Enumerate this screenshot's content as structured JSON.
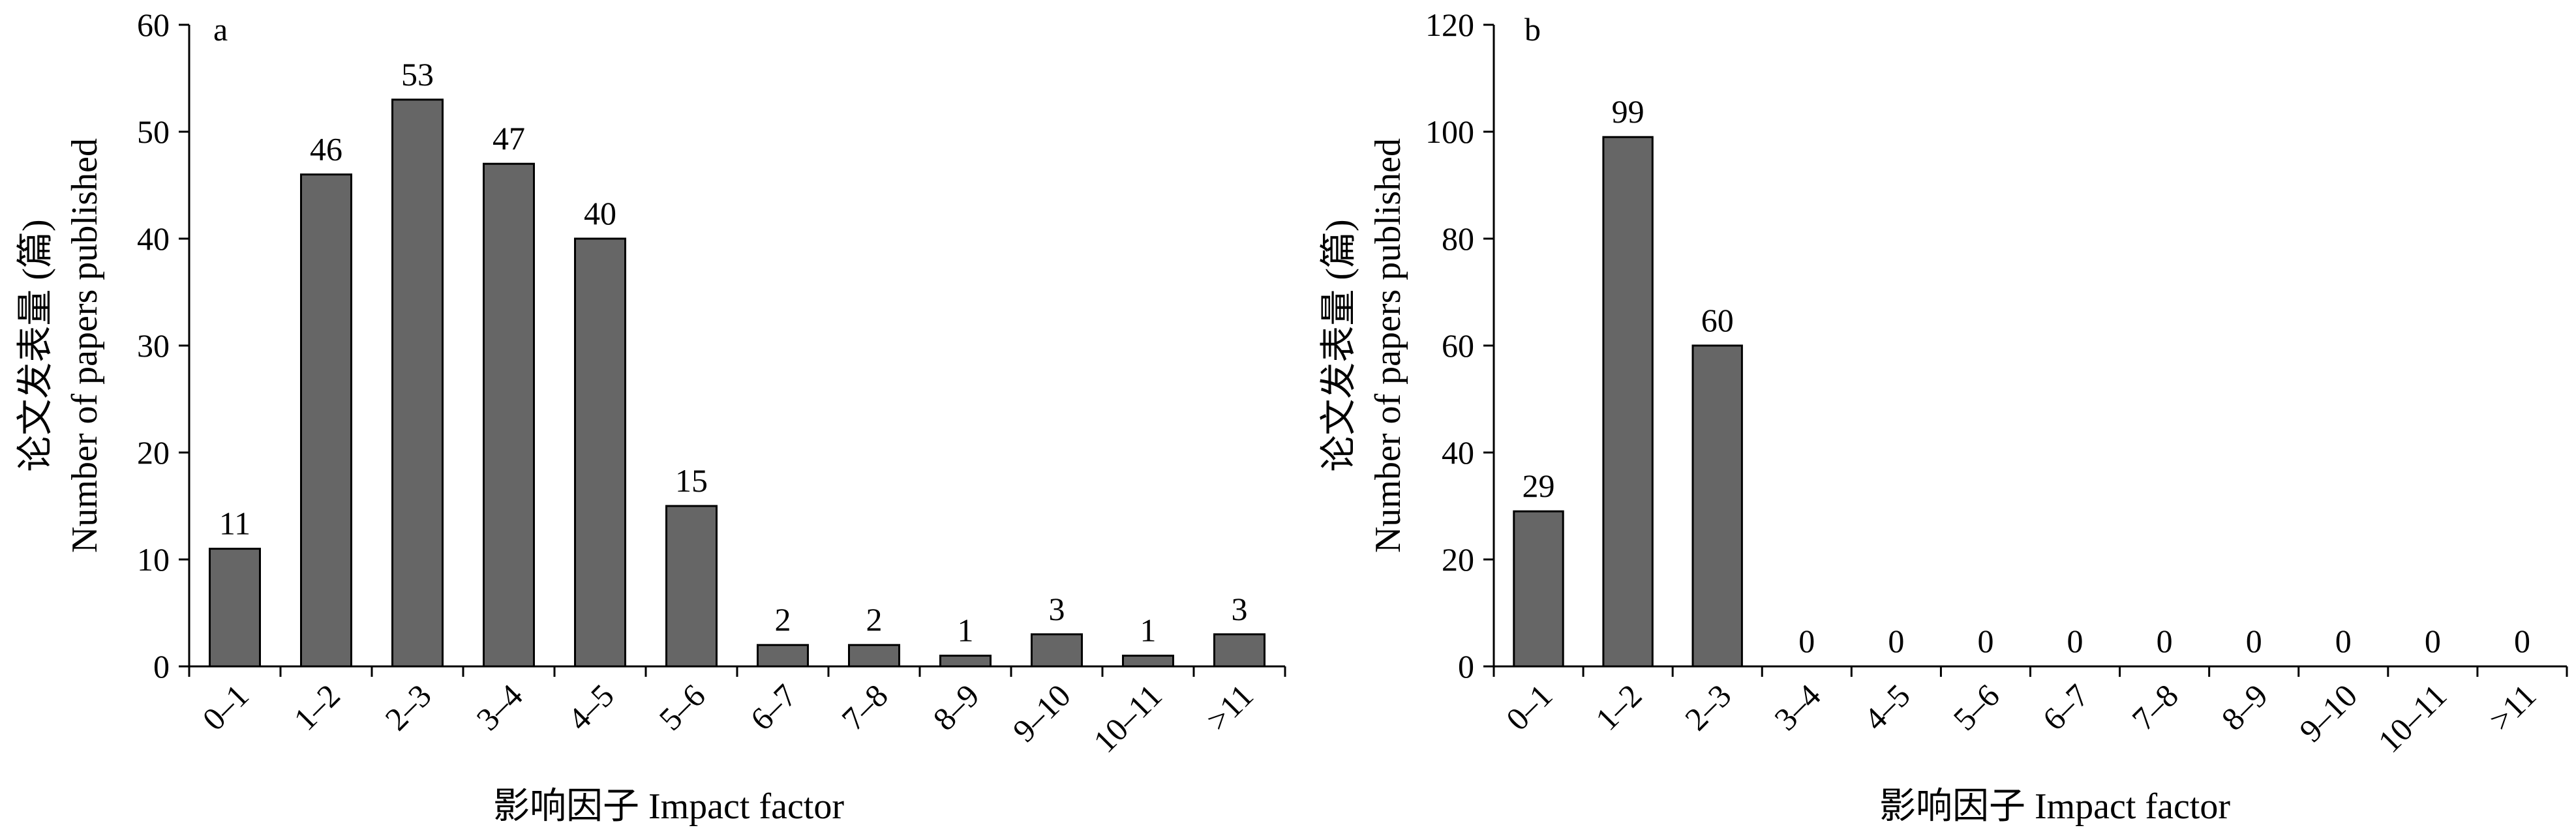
{
  "chart_data": [
    {
      "type": "bar",
      "panel_label": "a",
      "categories": [
        "0–1",
        "1–2",
        "2–3",
        "3–4",
        "4–5",
        "5–6",
        "6–7",
        "7–8",
        "8–9",
        "9–10",
        "10–11",
        ">11"
      ],
      "values": [
        11,
        46,
        53,
        47,
        40,
        15,
        2,
        2,
        1,
        3,
        1,
        3
      ],
      "data_labels": [
        "11",
        "46",
        "53",
        "47",
        "40",
        "15",
        "2",
        "2",
        "1",
        "3",
        "1",
        "3"
      ],
      "xlabel": "影响因子 Impact factor",
      "ylabel_cn": "论文发表量 (篇)",
      "ylabel_en": "Number of papers published",
      "ylim": [
        0,
        60
      ],
      "yticks": [
        "0",
        "10",
        "20",
        "30",
        "40",
        "50",
        "60"
      ],
      "grid": false,
      "bar_color": "#666666"
    },
    {
      "type": "bar",
      "panel_label": "b",
      "categories": [
        "0–1",
        "1–2",
        "2–3",
        "3–4",
        "4–5",
        "5–6",
        "6–7",
        "7–8",
        "8–9",
        "9–10",
        "10–11",
        ">11"
      ],
      "values": [
        29,
        99,
        60,
        0,
        0,
        0,
        0,
        0,
        0,
        0,
        0,
        0
      ],
      "data_labels": [
        "29",
        "99",
        "60",
        "0",
        "0",
        "0",
        "0",
        "0",
        "0",
        "0",
        "0",
        "0"
      ],
      "xlabel": "影响因子 Impact factor",
      "ylabel_cn": "论文发表量 (篇)",
      "ylabel_en": "Number of papers published",
      "ylim": [
        0,
        120
      ],
      "yticks": [
        "0",
        "20",
        "40",
        "60",
        "80",
        "100",
        "120"
      ],
      "grid": false,
      "bar_color": "#666666"
    }
  ]
}
